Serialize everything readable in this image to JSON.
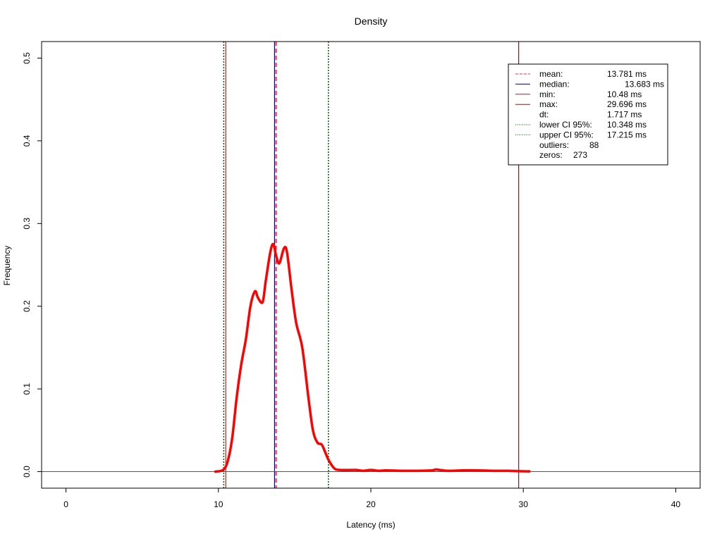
{
  "chart_data": {
    "type": "line",
    "title": "Density",
    "xlabel": "Latency (ms)",
    "ylabel": "Frequency",
    "xlim": [
      -1.6,
      41.6
    ],
    "ylim": [
      -0.02,
      0.52
    ],
    "x_ticks": [
      0,
      10,
      20,
      30,
      40
    ],
    "y_ticks": [
      0.0,
      0.1,
      0.2,
      0.3,
      0.4,
      0.5
    ],
    "grid": false,
    "legend_position": "top-right",
    "series": [
      {
        "color": "#ff0000",
        "x": [
          9.8,
          10.3,
          10.6,
          10.9,
          11.2,
          11.5,
          11.8,
          12.1,
          12.4,
          12.6,
          12.9,
          13.1,
          13.4,
          13.6,
          13.8,
          14.0,
          14.3,
          14.5,
          14.8,
          15.1,
          15.5,
          15.9,
          16.2,
          16.5,
          16.8,
          17.2,
          17.6,
          18.0,
          19.0,
          19.5,
          20.0,
          20.5,
          21.0,
          22.0,
          23.0,
          24.0,
          24.3,
          25.0,
          26.0,
          27.0,
          28.0,
          29.0,
          29.7,
          30.4
        ],
        "values": [
          0.0,
          0.002,
          0.012,
          0.04,
          0.09,
          0.13,
          0.16,
          0.2,
          0.218,
          0.21,
          0.205,
          0.23,
          0.265,
          0.275,
          0.26,
          0.252,
          0.27,
          0.265,
          0.22,
          0.18,
          0.15,
          0.09,
          0.05,
          0.035,
          0.032,
          0.015,
          0.004,
          0.002,
          0.002,
          0.001,
          0.002,
          0.001,
          0.0015,
          0.001,
          0.001,
          0.0015,
          0.0025,
          0.001,
          0.0015,
          0.0015,
          0.001,
          0.001,
          0.0005,
          0.0003
        ]
      }
    ],
    "reference_lines": [
      {
        "x": 13.781,
        "color": "#ff2255",
        "style": "dashed"
      },
      {
        "x": 13.683,
        "color": "#000080",
        "style": "solid"
      },
      {
        "x": 10.48,
        "color": "#b22222",
        "style": "solid"
      },
      {
        "x": 29.696,
        "color": "#8b1a1a",
        "style": "solid"
      },
      {
        "x": 10.348,
        "color": "#006400",
        "style": "dotted"
      },
      {
        "x": 17.215,
        "color": "#006400",
        "style": "dotted"
      }
    ],
    "baseline": {
      "y": 0,
      "color": "#555555"
    },
    "legend": [
      {
        "label": "mean:",
        "value": "13.781 ms",
        "color": "#ff2255",
        "style": "dashed"
      },
      {
        "label": "median:",
        "value": "13.683 ms",
        "color": "#000080",
        "style": "solid",
        "value_indent": true
      },
      {
        "label": "min:",
        "value": "10.48 ms",
        "color": "#b22222",
        "style": "solid"
      },
      {
        "label": "max:",
        "value": "29.696 ms",
        "color": "#8b1a1a",
        "style": "solid"
      },
      {
        "label": "dt:",
        "value": "1.717 ms",
        "color": "",
        "style": "none"
      },
      {
        "label": "lower CI 95%:",
        "value": "10.348 ms",
        "color": "#006400",
        "style": "dotted"
      },
      {
        "label": "upper CI 95%:",
        "value": "17.215 ms",
        "color": "#006400",
        "style": "dotted"
      },
      {
        "label": "outliers:",
        "value": "88",
        "color": "",
        "style": "none",
        "inline": true
      },
      {
        "label": "zeros:",
        "value": "273",
        "color": "",
        "style": "none",
        "inline": true
      }
    ]
  }
}
